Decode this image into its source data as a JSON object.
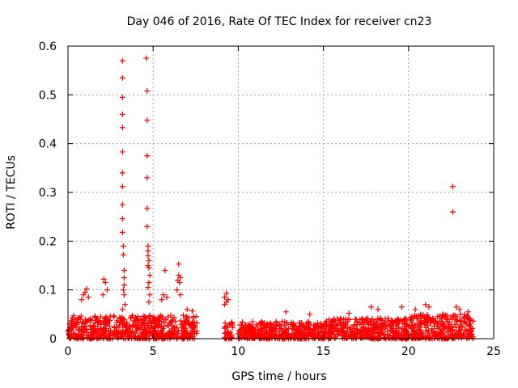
{
  "chart_data": {
    "type": "scatter",
    "title": "Day 046 of 2016, Rate Of TEC Index for receiver cn23",
    "xlabel": "GPS time / hours",
    "ylabel": "ROTI / TECUs",
    "xlim": [
      0,
      25
    ],
    "ylim": [
      0,
      0.6
    ],
    "xticks": [
      0,
      5,
      10,
      15,
      20,
      25
    ],
    "yticks": [
      0,
      0.1,
      0.2,
      0.3,
      0.4,
      0.5,
      0.6
    ],
    "xtick_labels": [
      "0",
      "5",
      "10",
      "15",
      "20",
      "25"
    ],
    "ytick_labels": [
      "0",
      "0.1",
      "0.2",
      "0.3",
      "0.4",
      "0.5",
      "0.6"
    ],
    "grid": true,
    "marker": "+",
    "color": "#ff0000",
    "series": [
      {
        "name": "cn23",
        "points": [
          [
            3.2,
            0.57
          ],
          [
            3.2,
            0.535
          ],
          [
            3.2,
            0.495
          ],
          [
            3.2,
            0.46
          ],
          [
            3.2,
            0.433
          ],
          [
            3.2,
            0.383
          ],
          [
            3.2,
            0.34
          ],
          [
            3.2,
            0.312
          ],
          [
            3.2,
            0.275
          ],
          [
            3.2,
            0.246
          ],
          [
            3.2,
            0.218
          ],
          [
            3.25,
            0.19
          ],
          [
            3.25,
            0.172
          ],
          [
            3.3,
            0.14
          ],
          [
            3.3,
            0.125
          ],
          [
            3.3,
            0.11
          ],
          [
            3.25,
            0.1
          ],
          [
            3.3,
            0.09
          ],
          [
            3.35,
            0.07
          ],
          [
            3.2,
            0.06
          ],
          [
            4.6,
            0.575
          ],
          [
            4.65,
            0.508
          ],
          [
            4.65,
            0.448
          ],
          [
            4.65,
            0.375
          ],
          [
            4.65,
            0.33
          ],
          [
            4.65,
            0.267
          ],
          [
            4.65,
            0.23
          ],
          [
            4.7,
            0.19
          ],
          [
            4.7,
            0.18
          ],
          [
            4.7,
            0.17
          ],
          [
            4.75,
            0.16
          ],
          [
            4.7,
            0.15
          ],
          [
            4.75,
            0.145
          ],
          [
            4.8,
            0.13
          ],
          [
            4.75,
            0.115
          ],
          [
            4.7,
            0.105
          ],
          [
            4.8,
            0.09
          ],
          [
            4.75,
            0.075
          ],
          [
            22.6,
            0.312
          ],
          [
            22.6,
            0.26
          ],
          [
            5.7,
            0.14
          ],
          [
            6.5,
            0.153
          ],
          [
            6.5,
            0.13
          ],
          [
            6.45,
            0.12
          ],
          [
            6.55,
            0.115
          ],
          [
            6.6,
            0.125
          ],
          [
            6.4,
            0.1
          ],
          [
            6.6,
            0.09
          ],
          [
            2.1,
            0.122
          ],
          [
            2.2,
            0.115
          ],
          [
            2.3,
            0.1
          ],
          [
            2.05,
            0.09
          ],
          [
            1.1,
            0.102
          ],
          [
            1.0,
            0.095
          ],
          [
            0.9,
            0.09
          ],
          [
            1.2,
            0.085
          ],
          [
            0.8,
            0.08
          ],
          [
            9.3,
            0.093
          ],
          [
            9.2,
            0.085
          ],
          [
            9.4,
            0.08
          ],
          [
            9.3,
            0.075
          ],
          [
            9.2,
            0.07
          ],
          [
            5.6,
            0.09
          ],
          [
            5.5,
            0.08
          ],
          [
            5.8,
            0.085
          ],
          [
            7.0,
            0.06
          ],
          [
            7.3,
            0.057
          ],
          [
            12.8,
            0.055
          ],
          [
            14.2,
            0.05
          ],
          [
            16.5,
            0.052
          ],
          [
            17.8,
            0.065
          ],
          [
            18.2,
            0.06
          ],
          [
            19.6,
            0.065
          ],
          [
            20.4,
            0.06
          ],
          [
            21.0,
            0.07
          ],
          [
            21.2,
            0.065
          ],
          [
            22.8,
            0.065
          ],
          [
            23.0,
            0.06
          ],
          [
            23.5,
            0.055
          ],
          [
            0.1,
            0.03
          ],
          [
            0.05,
            0.01
          ]
        ]
      }
    ],
    "dense_bands": [
      {
        "x": [
          0.0,
          7.6
        ],
        "ymin": 0.0,
        "ymax": 0.048
      },
      {
        "x": [
          9.2,
          9.7
        ],
        "ymin": 0.0,
        "ymax": 0.035
      },
      {
        "x": [
          10.0,
          15.0
        ],
        "ymin": 0.0,
        "ymax": 0.035
      },
      {
        "x": [
          15.0,
          20.0
        ],
        "ymin": 0.0,
        "ymax": 0.042
      },
      {
        "x": [
          20.0,
          23.8
        ],
        "ymin": 0.0,
        "ymax": 0.05
      }
    ]
  }
}
